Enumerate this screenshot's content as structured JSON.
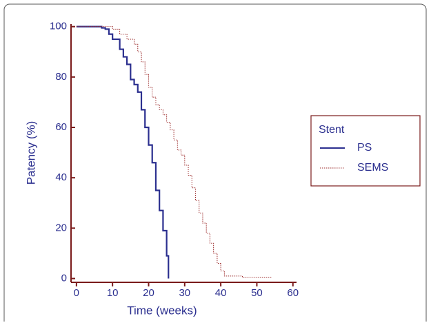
{
  "chart_data": {
    "type": "line",
    "step": true,
    "xlabel": "Time (weeks)",
    "ylabel": "Patency (%)",
    "xlim": [
      -1.5,
      61
    ],
    "xticks": [
      0,
      10,
      20,
      30,
      40,
      50,
      60
    ],
    "ylim": [
      -1.5,
      101
    ],
    "yticks": [
      0,
      20,
      40,
      60,
      80,
      100
    ],
    "legend": "right",
    "legend_title": "Stent",
    "series": [
      {
        "name": "PS",
        "color": "#2b2f8f",
        "dash": "solid",
        "x": [
          0,
          5,
          7,
          8,
          9,
          10,
          12,
          13,
          14,
          15,
          16,
          17,
          18,
          19,
          20,
          21,
          22,
          23,
          24,
          25,
          25.5
        ],
        "values": [
          100,
          100,
          99.5,
          99,
          97,
          95,
          91,
          88,
          85,
          79,
          77,
          74,
          67,
          60,
          53,
          46,
          35,
          27,
          19,
          9,
          0
        ]
      },
      {
        "name": "SEMS",
        "color": "#9b2a2a",
        "dash": "dotted",
        "x": [
          0,
          7,
          10,
          12,
          14,
          16,
          17,
          18,
          19,
          20,
          21,
          22,
          23,
          24,
          25,
          26,
          27,
          28,
          29,
          30,
          31,
          32,
          33,
          34,
          35,
          36,
          37,
          38,
          39,
          40,
          41,
          44,
          46,
          54
        ],
        "values": [
          100,
          100,
          99,
          97,
          95,
          93,
          90,
          86,
          81,
          76,
          72,
          69,
          67,
          65,
          62,
          59,
          55,
          51,
          49,
          45,
          41,
          36,
          31,
          26,
          22,
          18,
          14,
          10,
          6,
          3,
          1,
          1,
          0.5,
          0.5
        ]
      }
    ]
  }
}
